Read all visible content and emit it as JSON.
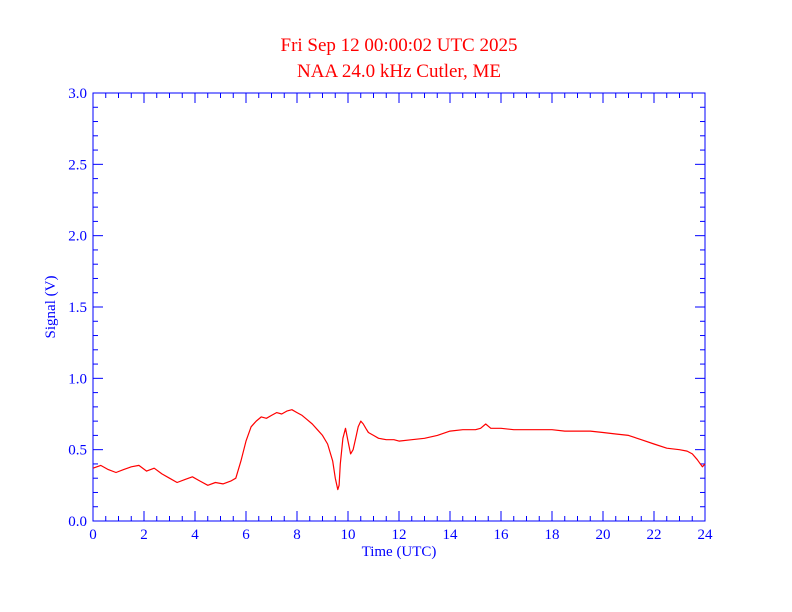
{
  "chart_data": {
    "type": "line",
    "title": "Fri Sep 12 00:00:02 UTC 2025",
    "subtitle": "NAA 24.0 kHz Cutler, ME",
    "xlabel": "Time (UTC)",
    "ylabel": "Signal (V)",
    "xlim": [
      0,
      24
    ],
    "ylim": [
      0,
      3.0
    ],
    "x_ticks": [
      "0",
      "2",
      "4",
      "6",
      "8",
      "10",
      "12",
      "14",
      "16",
      "18",
      "20",
      "22",
      "24"
    ],
    "y_ticks": [
      "0.0",
      "0.5",
      "1.0",
      "1.5",
      "2.0",
      "2.5",
      "3.0"
    ],
    "grid": false,
    "colors": {
      "title": "#ff0000",
      "axes": "#0000ff",
      "series": "#ff0000"
    },
    "series": [
      {
        "x": [
          0.0,
          0.3,
          0.6,
          0.9,
          1.2,
          1.5,
          1.8,
          2.1,
          2.4,
          2.7,
          3.0,
          3.3,
          3.6,
          3.9,
          4.2,
          4.5,
          4.8,
          5.1,
          5.4,
          5.6,
          5.8,
          6.0,
          6.2,
          6.4,
          6.6,
          6.8,
          7.0,
          7.2,
          7.4,
          7.6,
          7.8,
          8.0,
          8.2,
          8.4,
          8.6,
          8.8,
          9.0,
          9.2,
          9.4,
          9.5,
          9.6,
          9.65,
          9.7,
          9.8,
          9.9,
          10.0,
          10.1,
          10.2,
          10.3,
          10.4,
          10.5,
          10.6,
          10.7,
          10.8,
          11.0,
          11.2,
          11.5,
          11.8,
          12.0,
          12.5,
          13.0,
          13.5,
          14.0,
          14.5,
          15.0,
          15.2,
          15.4,
          15.6,
          16.0,
          16.5,
          17.0,
          17.5,
          18.0,
          18.5,
          19.0,
          19.5,
          20.0,
          20.5,
          21.0,
          21.5,
          22.0,
          22.5,
          23.0,
          23.3,
          23.5,
          23.7,
          23.9,
          24.0
        ],
        "y": [
          0.37,
          0.39,
          0.36,
          0.34,
          0.36,
          0.38,
          0.39,
          0.35,
          0.37,
          0.33,
          0.3,
          0.27,
          0.29,
          0.31,
          0.28,
          0.25,
          0.27,
          0.26,
          0.28,
          0.3,
          0.42,
          0.56,
          0.66,
          0.7,
          0.73,
          0.72,
          0.74,
          0.76,
          0.75,
          0.77,
          0.78,
          0.76,
          0.74,
          0.71,
          0.68,
          0.64,
          0.6,
          0.54,
          0.42,
          0.3,
          0.22,
          0.25,
          0.4,
          0.58,
          0.65,
          0.56,
          0.47,
          0.5,
          0.58,
          0.66,
          0.7,
          0.68,
          0.65,
          0.62,
          0.6,
          0.58,
          0.57,
          0.57,
          0.56,
          0.57,
          0.58,
          0.6,
          0.63,
          0.64,
          0.64,
          0.65,
          0.68,
          0.65,
          0.65,
          0.64,
          0.64,
          0.64,
          0.64,
          0.63,
          0.63,
          0.63,
          0.62,
          0.61,
          0.6,
          0.57,
          0.54,
          0.51,
          0.5,
          0.49,
          0.47,
          0.43,
          0.38,
          0.4
        ]
      }
    ]
  }
}
